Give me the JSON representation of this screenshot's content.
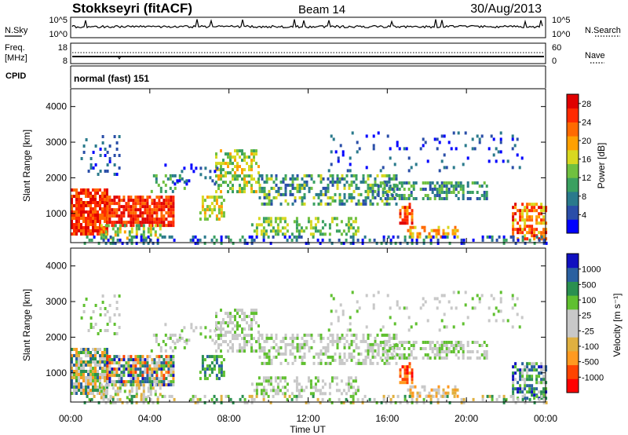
{
  "header": {
    "station": "Stokkseyri (fitACF)",
    "beam": "Beam 14",
    "date": "30/Aug/2013"
  },
  "strips": {
    "nsky": {
      "label": "N.Sky",
      "top_tick": "10^5",
      "bottom_tick": "10^0",
      "right_label": "N.Search",
      "right_top_tick": "10^5",
      "right_bottom_tick": "10^0"
    },
    "freq": {
      "label_line1": "Freq.",
      "label_line2": "[MHz]",
      "top_tick": "18",
      "bottom_tick": "8",
      "right_label": "Nave",
      "right_top_tick": "60",
      "right_bottom_tick": "0"
    },
    "cpid": {
      "label": "CPID",
      "text": "normal (fast) 151"
    }
  },
  "colors": {
    "power": [
      "#0000ff",
      "#2a4ea8",
      "#2a7a8c",
      "#3aa060",
      "#70c040",
      "#d8d820",
      "#ffa000",
      "#ff6a00",
      "#ff2a00",
      "#e00000"
    ],
    "velocity": [
      "#ff0000",
      "#ff4400",
      "#ff9a20",
      "#e0b040",
      "#c8c8c8",
      "#c8c8c8",
      "#60c030",
      "#2a9050",
      "#2a60a0",
      "#1010c0"
    ]
  },
  "chart_data": [
    {
      "type": "heatmap",
      "title": "",
      "xlabel": "",
      "ylabel": "Slant Range [km]",
      "ylim": [
        180,
        4500
      ],
      "xlim_hours": [
        0,
        24
      ],
      "colorbar_label": "Power [dB]",
      "colorbar_ticks": [
        "4",
        "8",
        "12",
        "16",
        "20",
        "24",
        "28"
      ],
      "colorbar_range": [
        0,
        30
      ],
      "yticks": [
        "1000",
        "2000",
        "3000",
        "4000"
      ]
    },
    {
      "type": "heatmap",
      "title": "",
      "xlabel": "Time UT",
      "ylabel": "Slant Range [km]",
      "ylim": [
        180,
        4500
      ],
      "xlim_hours": [
        0,
        24
      ],
      "colorbar_label": "Velocity [m s⁻¹]",
      "colorbar_ticks": [
        "1000",
        "500",
        "100",
        "25",
        "-25",
        "-100",
        "-500",
        "-1000"
      ],
      "yticks": [
        "1000",
        "2000",
        "3000",
        "4000"
      ]
    }
  ],
  "xaxis": {
    "ticks": [
      "00:00",
      "04:00",
      "08:00",
      "12:00",
      "16:00",
      "20:00",
      "00:00"
    ],
    "label": "Time UT"
  }
}
